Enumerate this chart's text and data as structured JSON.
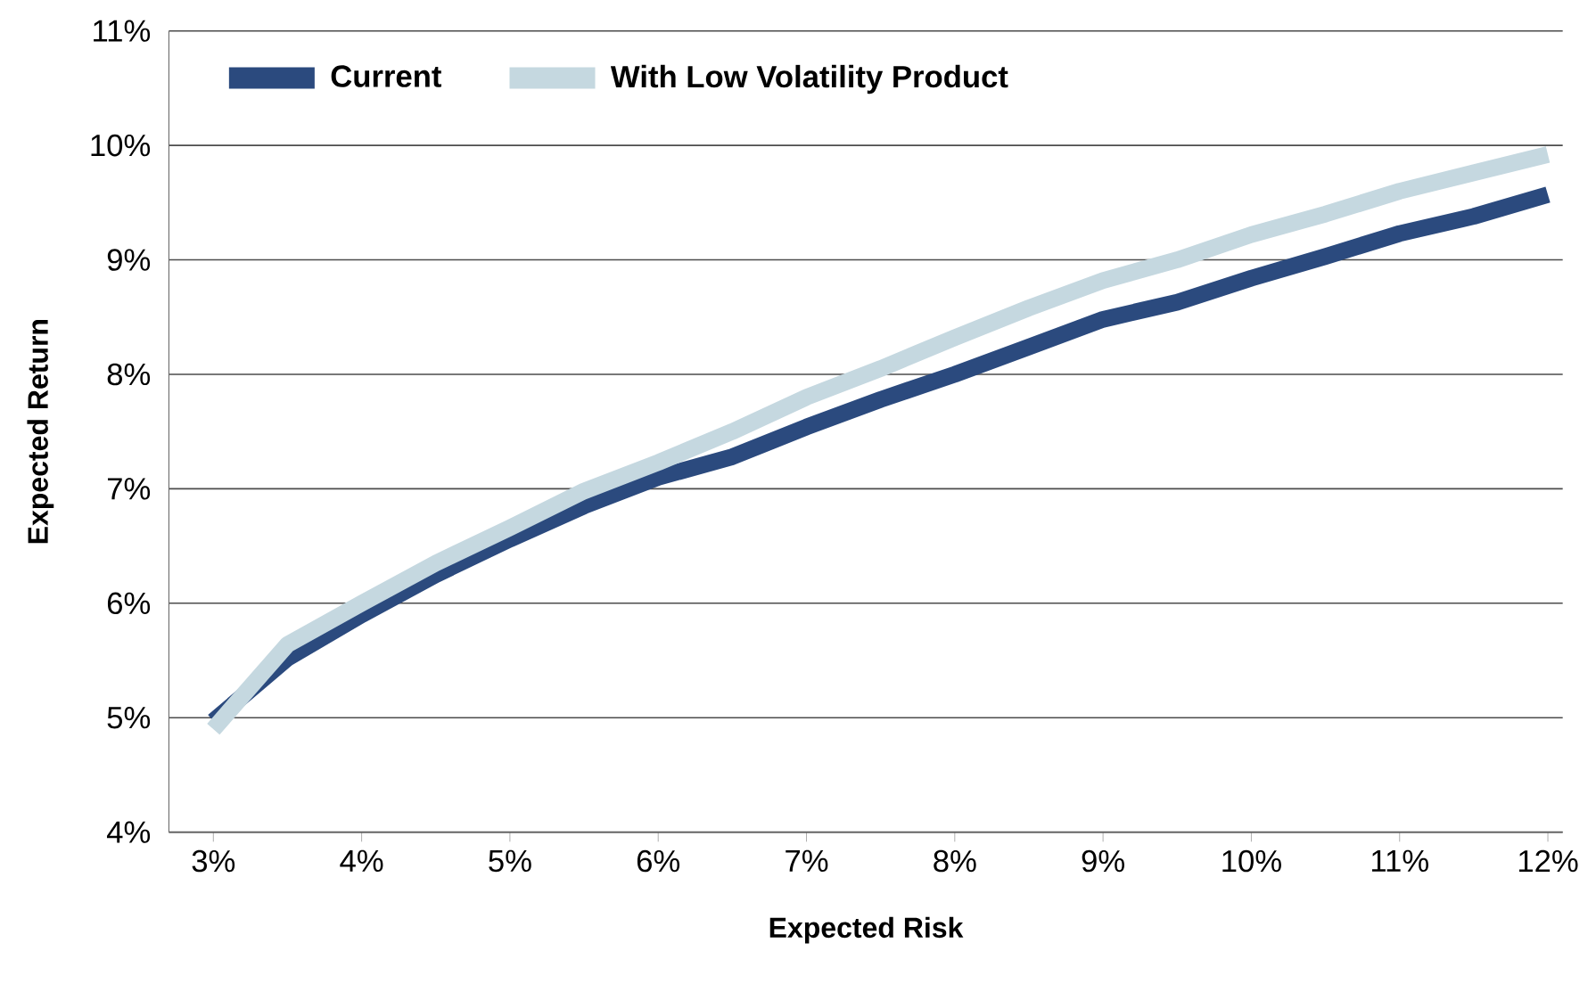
{
  "chart_data": {
    "type": "line",
    "xlabel": "Expected Risk",
    "ylabel": "Expected Return",
    "x": [
      3,
      3.5,
      4,
      4.5,
      5,
      5.5,
      6,
      6.5,
      7,
      7.5,
      8,
      8.5,
      9,
      9.5,
      10,
      10.5,
      11,
      11.5,
      12
    ],
    "series": [
      {
        "name": "Current",
        "color": "#2b4a7e",
        "values": [
          4.97,
          5.52,
          5.9,
          6.25,
          6.56,
          6.85,
          7.1,
          7.28,
          7.54,
          7.78,
          8.0,
          8.24,
          8.48,
          8.63,
          8.84,
          9.03,
          9.23,
          9.38,
          9.57
        ]
      },
      {
        "name": "With Low Volatility Product",
        "color": "#c5d8e0",
        "values": [
          4.9,
          5.64,
          6.0,
          6.35,
          6.66,
          6.98,
          7.23,
          7.5,
          7.8,
          8.05,
          8.32,
          8.58,
          8.82,
          9.0,
          9.22,
          9.4,
          9.6,
          9.76,
          9.92
        ]
      }
    ],
    "xlim": [
      2.7,
      12.1
    ],
    "ylim": [
      4,
      11
    ],
    "xticks": [
      {
        "value": 3,
        "label": "3%"
      },
      {
        "value": 4,
        "label": "4%"
      },
      {
        "value": 5,
        "label": "5%"
      },
      {
        "value": 6,
        "label": "6%"
      },
      {
        "value": 7,
        "label": "7%"
      },
      {
        "value": 8,
        "label": "8%"
      },
      {
        "value": 9,
        "label": "9%"
      },
      {
        "value": 10,
        "label": "10%"
      },
      {
        "value": 11,
        "label": "11%"
      },
      {
        "value": 12,
        "label": "12%"
      }
    ],
    "yticks": [
      {
        "value": 4,
        "label": "4%"
      },
      {
        "value": 5,
        "label": "5%"
      },
      {
        "value": 6,
        "label": "6%"
      },
      {
        "value": 7,
        "label": "7%"
      },
      {
        "value": 8,
        "label": "8%"
      },
      {
        "value": 9,
        "label": "9%"
      },
      {
        "value": 10,
        "label": "10%"
      },
      {
        "value": 11,
        "label": "11%"
      }
    ],
    "grid": "y",
    "legend": "top left",
    "marker": "none",
    "line_style": "solid"
  }
}
